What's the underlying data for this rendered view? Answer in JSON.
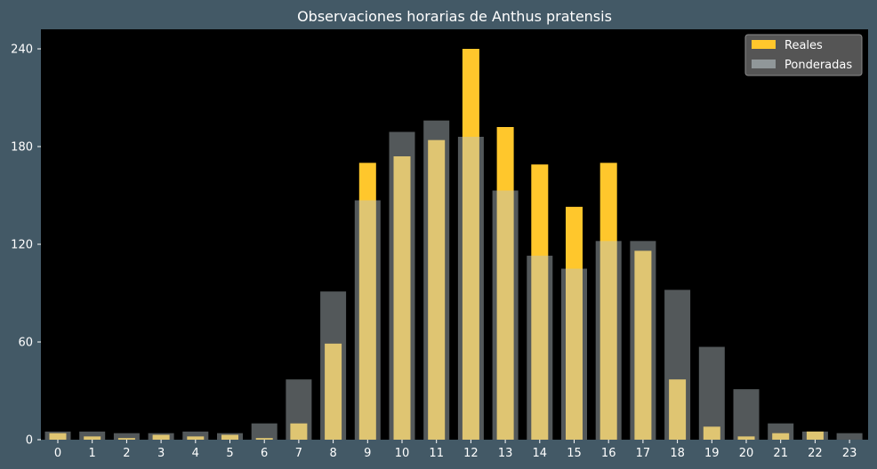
{
  "chart_data": {
    "type": "bar",
    "title": "Observaciones horarias de Anthus pratensis",
    "xlabel": "",
    "ylabel": "",
    "categories": [
      "0",
      "1",
      "2",
      "3",
      "4",
      "5",
      "6",
      "7",
      "8",
      "9",
      "10",
      "11",
      "12",
      "13",
      "14",
      "15",
      "16",
      "17",
      "18",
      "19",
      "20",
      "21",
      "22",
      "23"
    ],
    "ylim": [
      0,
      252
    ],
    "yticks": [
      0,
      60,
      120,
      180,
      240
    ],
    "grid": false,
    "legend_position": "top-right",
    "series": [
      {
        "name": "Reales",
        "color": "#ffc72c",
        "values": [
          4,
          2,
          1,
          3,
          2,
          3,
          1,
          10,
          59,
          170,
          174,
          184,
          240,
          192,
          169,
          143,
          170,
          116,
          37,
          8,
          2,
          4,
          5,
          0
        ]
      },
      {
        "name": "Ponderadas",
        "color": "#b8c3c7",
        "values": [
          5,
          5,
          4,
          4,
          5,
          4,
          10,
          37,
          91,
          147,
          189,
          196,
          186,
          153,
          113,
          105,
          122,
          122,
          92,
          57,
          31,
          10,
          5,
          4
        ]
      }
    ],
    "colors": {
      "figure_background": "#435966",
      "plot_background": "#000000",
      "legend_background": "#555555",
      "text": "#ffffff"
    }
  }
}
